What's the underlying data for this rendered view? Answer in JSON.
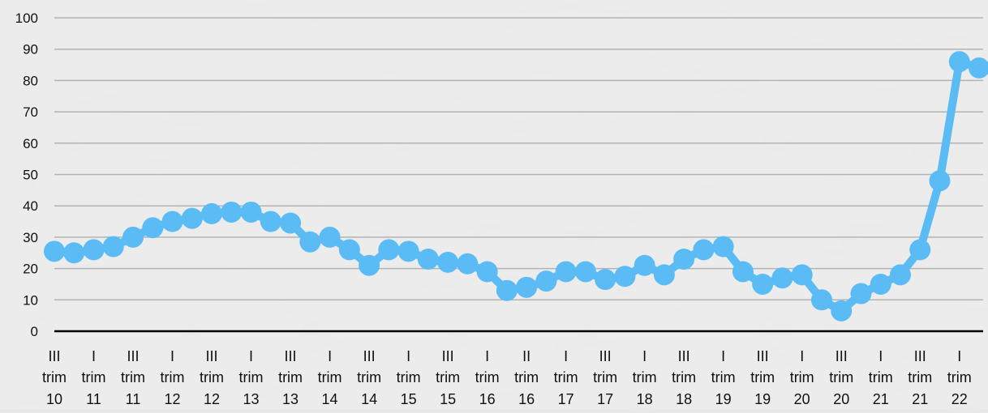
{
  "chart_data": {
    "type": "line",
    "title": "",
    "xlabel": "",
    "ylabel": "",
    "ylim": [
      0,
      100
    ],
    "yticks": [
      0,
      10,
      20,
      30,
      40,
      50,
      60,
      70,
      80,
      90,
      100
    ],
    "grid": true,
    "legend": "none",
    "categories": [
      "III trim 10",
      "",
      "I trim 11",
      "",
      "III trim 11",
      "",
      "I trim 12",
      "",
      "III trim 12",
      "",
      "I trim 13",
      "",
      "III trim 13",
      "",
      "I trim 14",
      "",
      "III trim 14",
      "",
      "I trim 15",
      "",
      "III trim 15",
      "",
      "I trim 16",
      "",
      "II trim 16",
      "",
      "I trim 17",
      "",
      "III trim 17",
      "",
      "I trim 18",
      "",
      "III trim 18",
      "",
      "I trim 19",
      "",
      "III trim 19",
      "",
      "I trim 20",
      "",
      "III trim 20",
      "",
      "I trim 21",
      "",
      "III trim 21",
      "",
      "I trim 22",
      ""
    ],
    "tick_labels": [
      [
        "III",
        "trim",
        "10"
      ],
      [
        "I",
        "trim",
        "11"
      ],
      [
        "III",
        "trim",
        "11"
      ],
      [
        "I",
        "trim",
        "12"
      ],
      [
        "III",
        "trim",
        "12"
      ],
      [
        "I",
        "trim",
        "13"
      ],
      [
        "III",
        "trim",
        "13"
      ],
      [
        "I",
        "trim",
        "14"
      ],
      [
        "III",
        "trim",
        "14"
      ],
      [
        "I",
        "trim",
        "15"
      ],
      [
        "III",
        "trim",
        "15"
      ],
      [
        "I",
        "trim",
        "16"
      ],
      [
        "II",
        "trim",
        "16"
      ],
      [
        "I",
        "trim",
        "17"
      ],
      [
        "III",
        "trim",
        "17"
      ],
      [
        "I",
        "trim",
        "18"
      ],
      [
        "III",
        "trim",
        "18"
      ],
      [
        "I",
        "trim",
        "19"
      ],
      [
        "III",
        "trim",
        "19"
      ],
      [
        "I",
        "trim",
        "20"
      ],
      [
        "III",
        "trim",
        "20"
      ],
      [
        "I",
        "trim",
        "21"
      ],
      [
        "III",
        "trim",
        "21"
      ],
      [
        "I",
        "trim",
        "22"
      ]
    ],
    "series": [
      {
        "values": [
          25.5,
          25,
          26,
          27,
          30,
          33,
          35,
          36,
          37.5,
          38,
          38,
          35,
          34.5,
          28.5,
          30,
          26,
          21,
          26,
          25.5,
          23,
          22,
          21.5,
          19,
          13,
          14,
          16,
          19,
          19,
          16.5,
          17.5,
          21,
          18,
          23,
          26,
          27,
          19,
          15,
          17,
          18,
          10,
          6.5,
          12,
          15,
          18,
          26,
          48,
          86,
          84
        ],
        "color": "#5bbcf5"
      }
    ],
    "colors": {
      "line": "#5bbcf5",
      "grid": "#b3b3b3",
      "axis": "#000000",
      "background": "#e9e9e9"
    }
  }
}
